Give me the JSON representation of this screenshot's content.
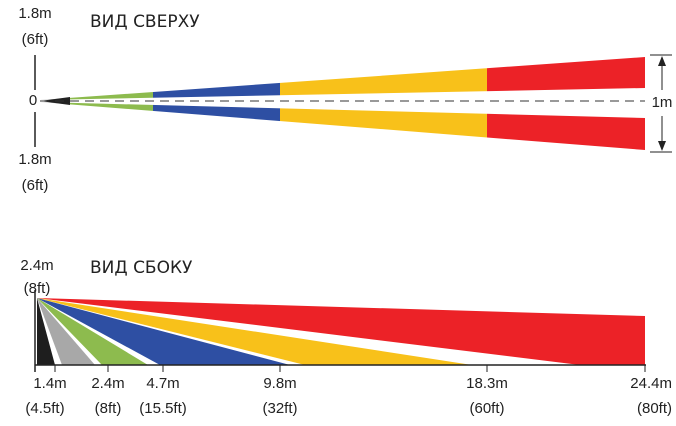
{
  "top_view": {
    "title": "ВИД СВЕРХУ",
    "upper_width": {
      "metric": "1.8m",
      "imperial": "(6ft)"
    },
    "origin": "0",
    "lower_width": {
      "metric": "1.8m",
      "imperial": "(6ft)"
    },
    "beam_width": "1m"
  },
  "side_view": {
    "title": "ВИД СБОКУ",
    "height": {
      "metric": "2.4m",
      "imperial": "(8ft)"
    },
    "distances": [
      {
        "metric": "1.4m",
        "imperial": "(4.5ft)"
      },
      {
        "metric": "2.4m",
        "imperial": "(8ft)"
      },
      {
        "metric": "4.7m",
        "imperial": "(15.5ft)"
      },
      {
        "metric": "9.8m",
        "imperial": "(32ft)"
      },
      {
        "metric": "18.3m",
        "imperial": "(60ft)"
      },
      {
        "metric": "24.4m",
        "imperial": "(80ft)"
      }
    ]
  }
}
